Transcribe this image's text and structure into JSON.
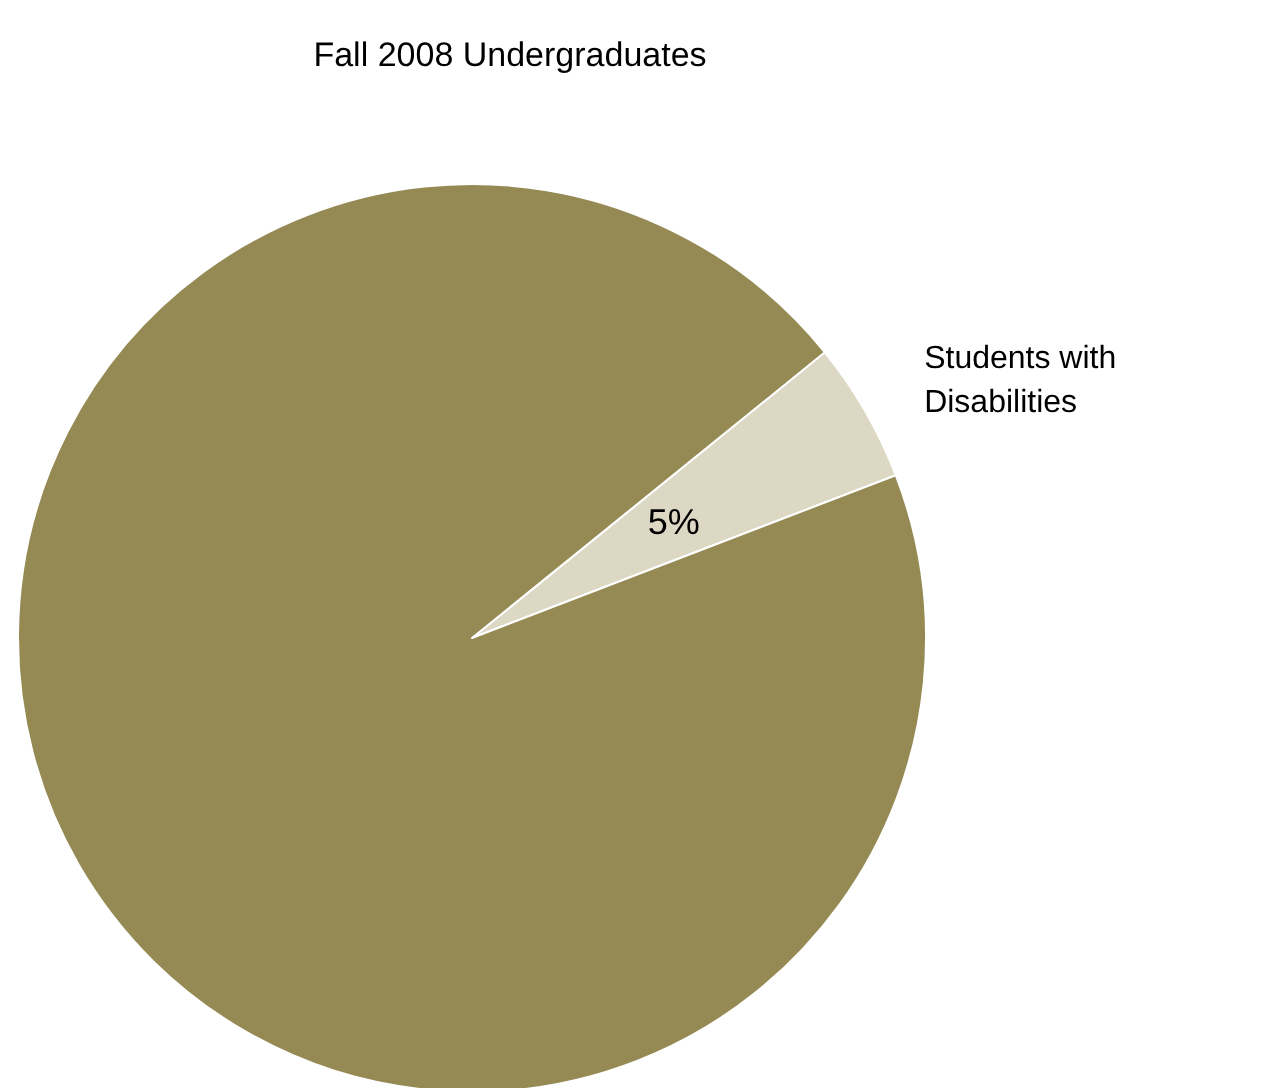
{
  "chart_data": {
    "type": "pie",
    "title": "Fall 2008 Undergraduates",
    "categories": [
      "Students with Disabilities",
      null
    ],
    "values": [
      5,
      95
    ],
    "colors": [
      "#ddd8c4",
      "#958a54"
    ],
    "value_labels": [
      "5%",
      null
    ],
    "legend": false
  }
}
